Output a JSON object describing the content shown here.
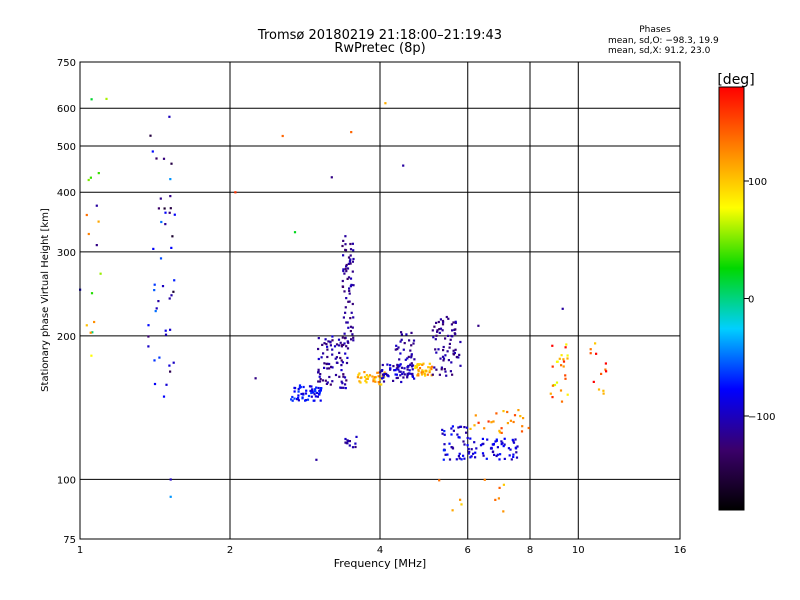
{
  "chart_data": {
    "type": "scatter",
    "title": "Tromsø 20180219 21:18:00–21:19:43",
    "subtitle": "RwPretec (8p)",
    "xlabel": "Frequency [MHz]",
    "ylabel": "Stationary phase Virtual Height [km]",
    "x_scale": "log",
    "y_scale": "log",
    "xlim": [
      1,
      16
    ],
    "ylim": [
      75,
      750
    ],
    "x_ticks": [
      "1",
      "2",
      "4",
      "6",
      "8",
      "10",
      "16"
    ],
    "y_ticks": [
      "75",
      "100",
      "200",
      "300",
      "400",
      "500",
      "600",
      "750"
    ],
    "grid": true,
    "stats_title": "Phases",
    "stats_lines": [
      "mean, sd,O: −98.3, 19.9",
      "mean, sd,X:  91.2, 23.0"
    ],
    "colorbar": {
      "label": "[deg]",
      "ticks": [
        "100",
        "0",
        "−100"
      ],
      "range": [
        -180,
        180
      ],
      "colors": [
        "#000000",
        "#3b006b",
        "#0000ff",
        "#00cfff",
        "#00d800",
        "#ffff00",
        "#ff8000",
        "#ff0000"
      ]
    },
    "clusters": [
      {
        "fmin": 1.37,
        "fmax": 1.55,
        "hmin": 130,
        "hmax": 580,
        "count": 45,
        "phase": -100,
        "spread": 60
      },
      {
        "fmin": 1.02,
        "fmax": 1.12,
        "hmin": 180,
        "hmax": 640,
        "count": 14,
        "phase": 60,
        "spread": 80
      },
      {
        "fmin": 2.65,
        "fmax": 3.05,
        "hmin": 146,
        "hmax": 158,
        "count": 60,
        "phase": -80,
        "spread": 20
      },
      {
        "fmin": 3.0,
        "fmax": 3.45,
        "hmin": 155,
        "hmax": 200,
        "count": 80,
        "phase": -110,
        "spread": 20
      },
      {
        "fmin": 3.35,
        "fmax": 3.55,
        "hmin": 190,
        "hmax": 330,
        "count": 70,
        "phase": -115,
        "spread": 15
      },
      {
        "fmin": 3.4,
        "fmax": 3.6,
        "hmin": 115,
        "hmax": 125,
        "count": 12,
        "phase": -110,
        "spread": 15
      },
      {
        "fmin": 3.6,
        "fmax": 4.1,
        "hmin": 158,
        "hmax": 168,
        "count": 35,
        "phase": 110,
        "spread": 20
      },
      {
        "fmin": 4.0,
        "fmax": 4.7,
        "hmin": 160,
        "hmax": 175,
        "count": 60,
        "phase": -100,
        "spread": 20
      },
      {
        "fmin": 4.3,
        "fmax": 4.7,
        "hmin": 170,
        "hmax": 205,
        "count": 35,
        "phase": -110,
        "spread": 15
      },
      {
        "fmin": 4.7,
        "fmax": 5.1,
        "hmin": 165,
        "hmax": 175,
        "count": 40,
        "phase": 110,
        "spread": 25
      },
      {
        "fmin": 5.1,
        "fmax": 5.8,
        "hmin": 165,
        "hmax": 220,
        "count": 70,
        "phase": -115,
        "spread": 15
      },
      {
        "fmin": 5.3,
        "fmax": 6.0,
        "hmin": 110,
        "hmax": 130,
        "count": 40,
        "phase": -90,
        "spread": 25
      },
      {
        "fmin": 6.0,
        "fmax": 7.6,
        "hmin": 110,
        "hmax": 122,
        "count": 60,
        "phase": -90,
        "spread": 20
      },
      {
        "fmin": 6.0,
        "fmax": 8.0,
        "hmin": 125,
        "hmax": 140,
        "count": 25,
        "phase": 130,
        "spread": 30
      },
      {
        "fmin": 8.8,
        "fmax": 9.6,
        "hmin": 145,
        "hmax": 200,
        "count": 25,
        "phase": 120,
        "spread": 60
      },
      {
        "fmin": 10.5,
        "fmax": 11.5,
        "hmin": 150,
        "hmax": 195,
        "count": 12,
        "phase": 150,
        "spread": 60
      },
      {
        "fmin": 5.2,
        "fmax": 7.8,
        "hmin": 85,
        "hmax": 100,
        "count": 10,
        "phase": 120,
        "spread": 30
      }
    ],
    "points": [
      [
        1.52,
        100,
        -100
      ],
      [
        1.52,
        92,
        -40
      ],
      [
        1.13,
        628,
        60
      ],
      [
        2.05,
        400,
        160
      ],
      [
        2.55,
        525,
        140
      ],
      [
        3.2,
        430,
        -120
      ],
      [
        3.5,
        535,
        140
      ],
      [
        4.1,
        615,
        110
      ],
      [
        4.45,
        455,
        -110
      ],
      [
        2.7,
        330,
        20
      ],
      [
        2.98,
        110,
        -110
      ],
      [
        2.25,
        163,
        -120
      ],
      [
        6.3,
        210,
        -120
      ],
      [
        9.3,
        228,
        -110
      ],
      [
        1.0,
        250,
        -90
      ],
      [
        1.08,
        375,
        -110
      ],
      [
        1.08,
        310,
        -120
      ]
    ]
  }
}
